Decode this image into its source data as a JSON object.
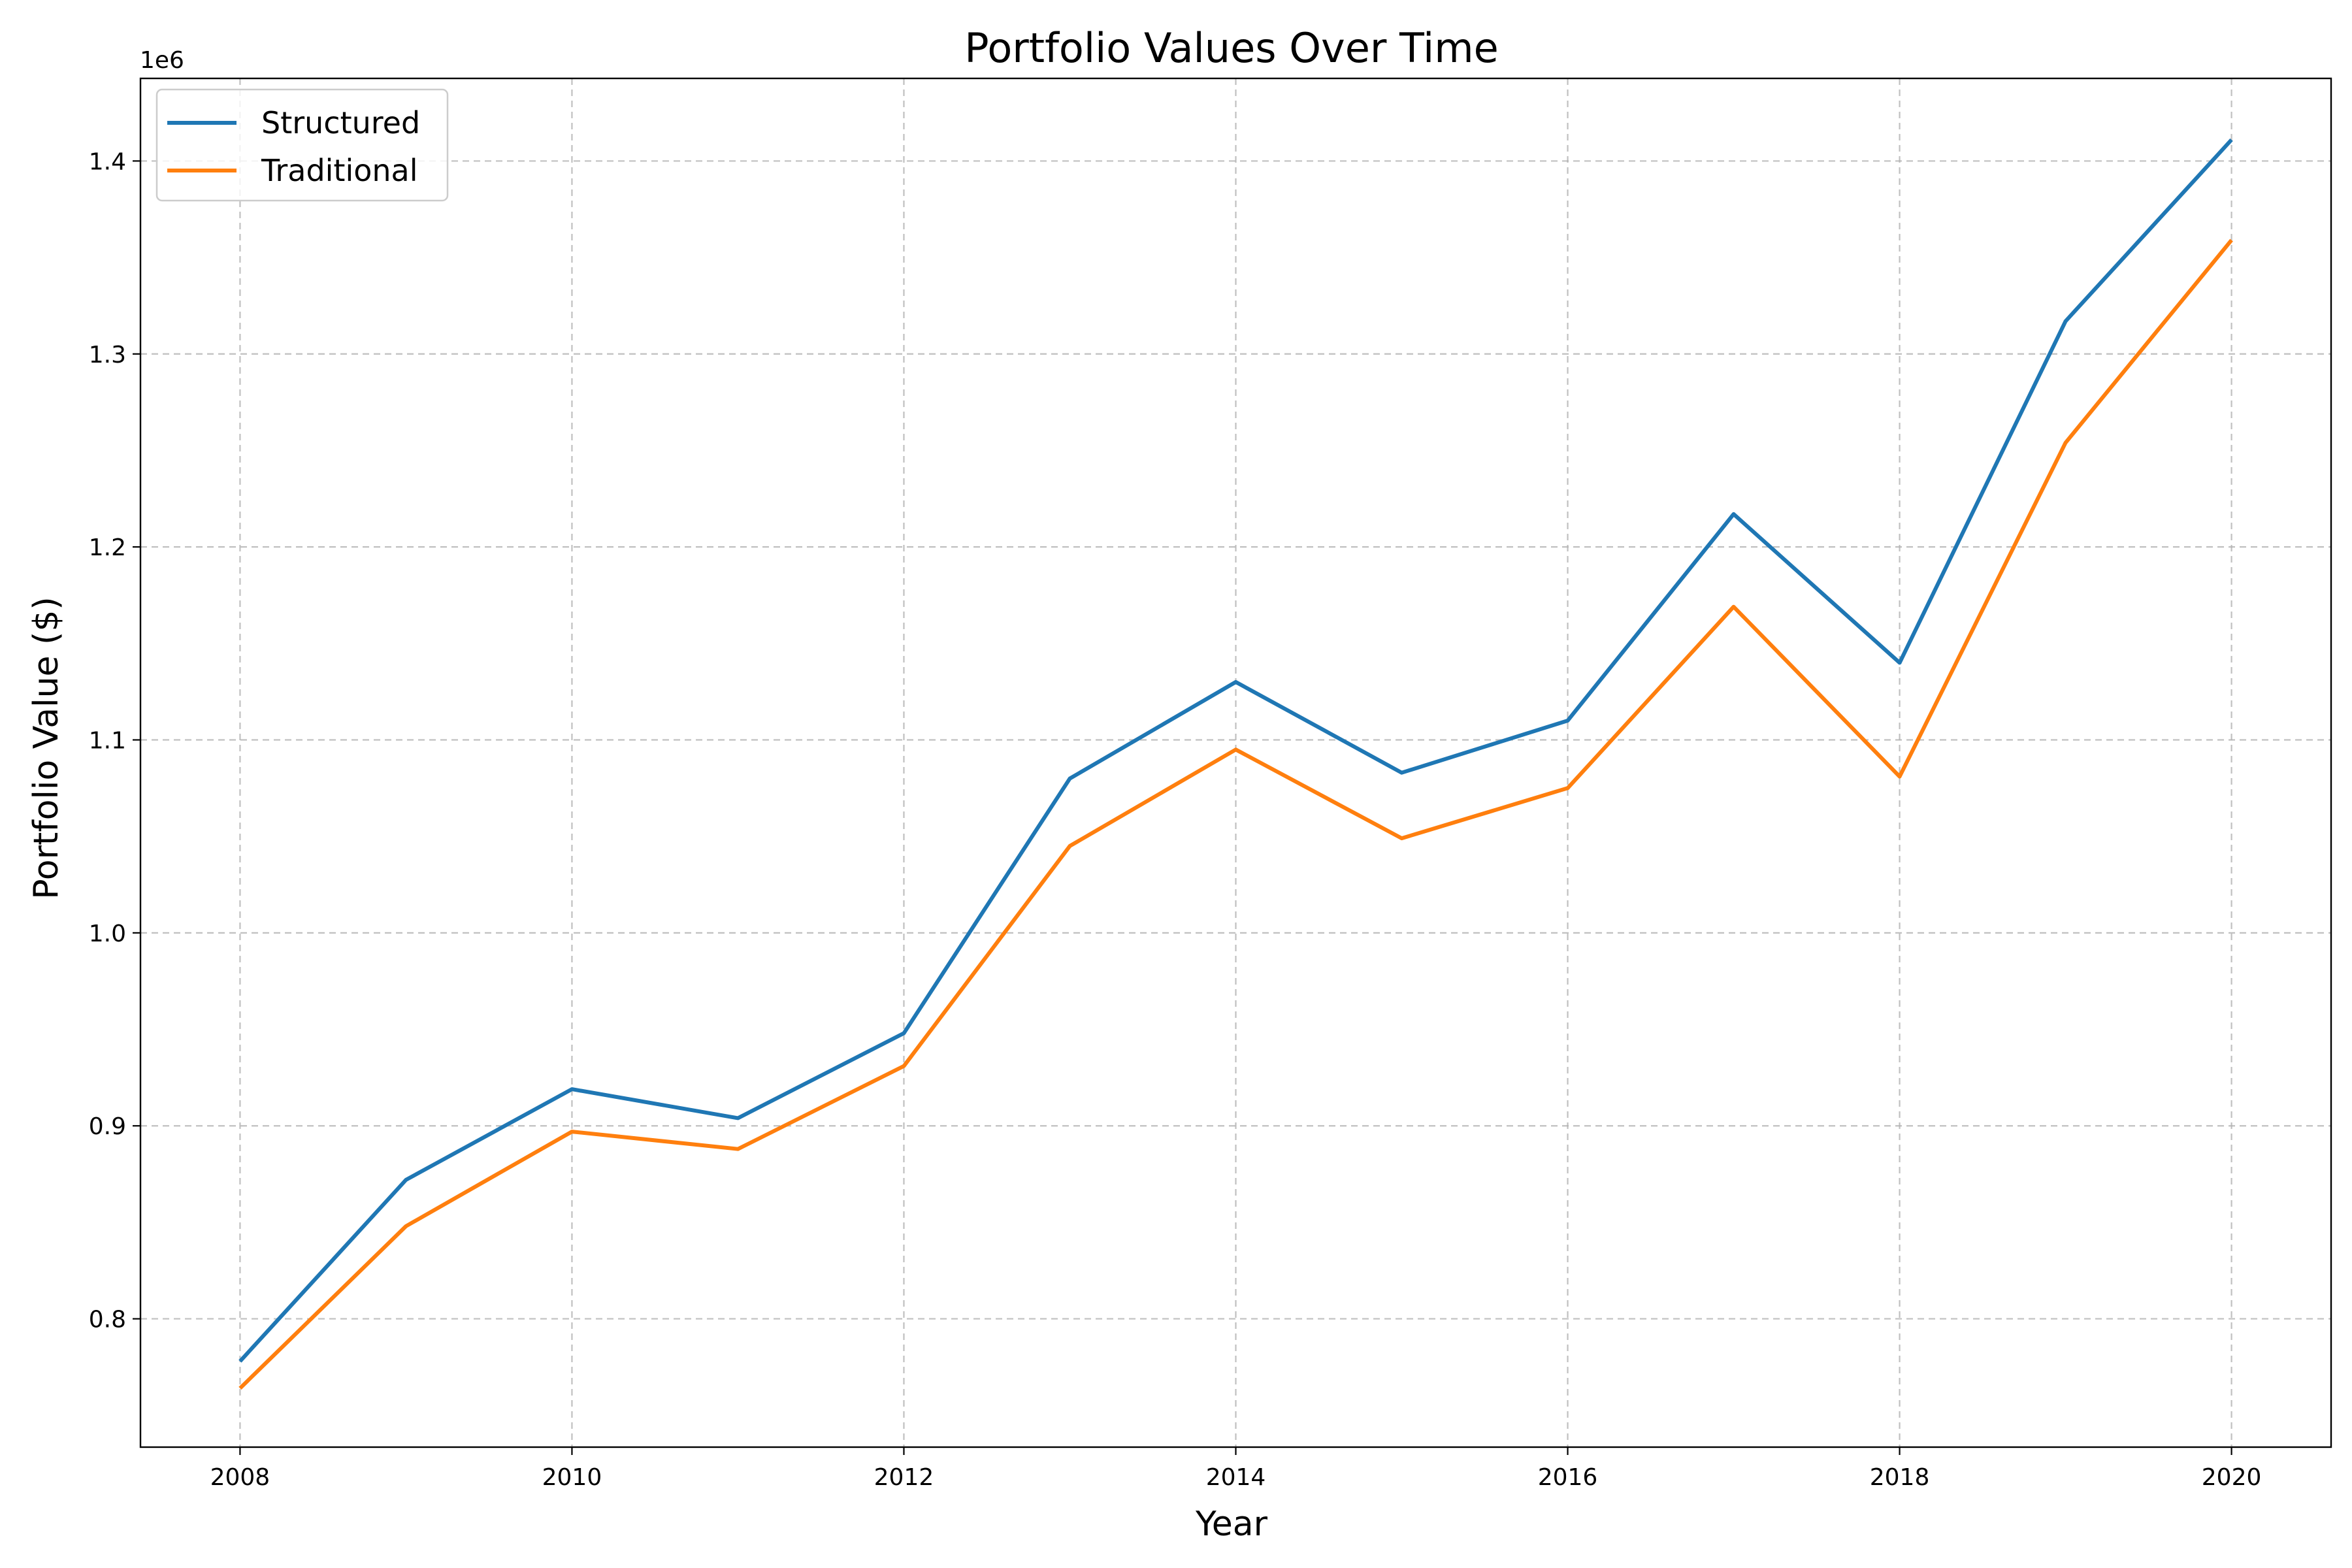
{
  "chart_data": {
    "type": "line",
    "title": "Portfolio Values Over Time",
    "xlabel": "Year",
    "ylabel": "Portfolio Value ($)",
    "y_offset_label": "1e6",
    "x": [
      2008,
      2009,
      2010,
      2011,
      2012,
      2013,
      2014,
      2015,
      2016,
      2017,
      2018,
      2019,
      2020
    ],
    "xlim": [
      2007.4,
      2020.6
    ],
    "ylim": [
      0.7335,
      1.4428
    ],
    "x_ticks": [
      2008,
      2010,
      2012,
      2014,
      2016,
      2018,
      2020
    ],
    "y_ticks": [
      0.8,
      0.9,
      1.0,
      1.1,
      1.2,
      1.3,
      1.4
    ],
    "y_tick_labels": [
      "0.8",
      "0.9",
      "1.0",
      "1.1",
      "1.2",
      "1.3",
      "1.4"
    ],
    "grid": true,
    "legend_position": "top-left",
    "series": [
      {
        "name": "Structured",
        "color": "#1f77b4",
        "values": [
          0.778,
          0.872,
          0.919,
          0.904,
          0.948,
          1.08,
          1.13,
          1.083,
          1.11,
          1.217,
          1.14,
          1.317,
          1.411
        ]
      },
      {
        "name": "Traditional",
        "color": "#ff7f0e",
        "values": [
          0.764,
          0.848,
          0.897,
          0.888,
          0.931,
          1.045,
          1.095,
          1.049,
          1.075,
          1.169,
          1.081,
          1.254,
          1.359
        ]
      }
    ]
  }
}
